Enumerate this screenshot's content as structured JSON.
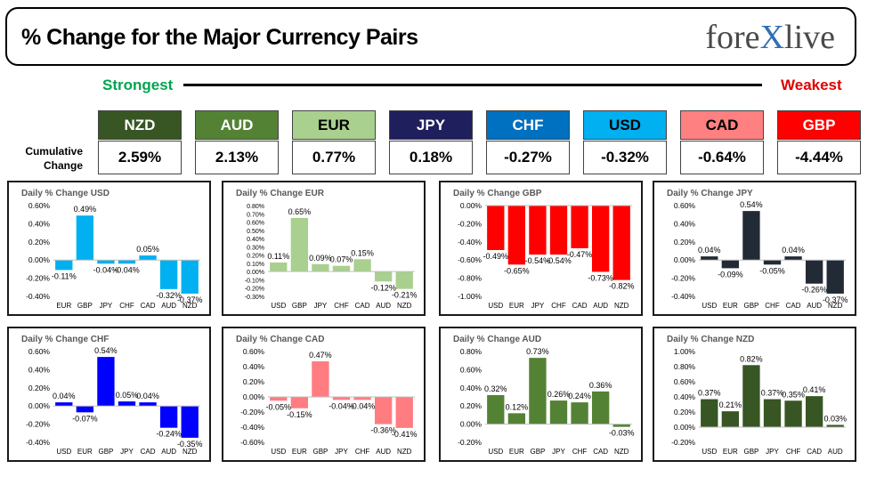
{
  "header": {
    "title": "% Change for the Major Currency Pairs",
    "logo_left": "fore",
    "logo_x": "X",
    "logo_right": "live"
  },
  "ranking": {
    "strongest_label": "Strongest",
    "weakest_label": "Weakest",
    "cumulative_label_line1": "Cumulative",
    "cumulative_label_line2": "Change",
    "currencies": [
      {
        "code": "NZD",
        "value": "2.59%",
        "bg": "#375623",
        "fg": "#ffffff"
      },
      {
        "code": "AUD",
        "value": "2.13%",
        "bg": "#548235",
        "fg": "#ffffff"
      },
      {
        "code": "EUR",
        "value": "0.77%",
        "bg": "#a9d08e",
        "fg": "#000000"
      },
      {
        "code": "JPY",
        "value": "0.18%",
        "bg": "#1f1f5e",
        "fg": "#ffffff"
      },
      {
        "code": "CHF",
        "value": "-0.27%",
        "bg": "#0070c0",
        "fg": "#ffffff"
      },
      {
        "code": "USD",
        "value": "-0.32%",
        "bg": "#00b0f0",
        "fg": "#000000"
      },
      {
        "code": "CAD",
        "value": "-0.64%",
        "bg": "#ff8080",
        "fg": "#000000"
      },
      {
        "code": "GBP",
        "value": "-4.44%",
        "bg": "#ff0000",
        "fg": "#ffffff"
      }
    ]
  },
  "chart_data": [
    {
      "type": "bar",
      "title": "Daily % Change USD",
      "color": "#00b0f0",
      "categories": [
        "EUR",
        "GBP",
        "JPY",
        "CHF",
        "CAD",
        "AUD",
        "NZD"
      ],
      "values": [
        -0.11,
        0.49,
        -0.04,
        -0.04,
        0.05,
        -0.32,
        -0.37
      ],
      "labels": [
        "-0.11%",
        "0.49%",
        "-0.04%",
        "-0.04%",
        "0.05%",
        "-0.32%",
        "-0.37%"
      ],
      "ylim": [
        -0.4,
        0.6
      ],
      "ticks": [
        0.6,
        0.4,
        0.2,
        0.0,
        -0.2,
        -0.4
      ],
      "tick_labels": [
        "0.60%",
        "0.40%",
        "0.20%",
        "0.00%",
        "-0.20%",
        "-0.40%"
      ]
    },
    {
      "type": "bar",
      "title": "Daily % Change EUR",
      "color": "#a9d08e",
      "categories": [
        "USD",
        "GBP",
        "JPY",
        "CHF",
        "CAD",
        "AUD",
        "NZD"
      ],
      "values": [
        0.11,
        0.65,
        0.09,
        0.07,
        0.15,
        -0.12,
        -0.21
      ],
      "labels": [
        "0.11%",
        "0.65%",
        "0.09%",
        "0.07%",
        "0.15%",
        "-0.12%",
        "-0.21%"
      ],
      "ylim": [
        -0.3,
        0.8
      ],
      "ticks": [
        0.8,
        0.7,
        0.6,
        0.5,
        0.4,
        0.3,
        0.2,
        0.1,
        0.0,
        -0.1,
        -0.2,
        -0.3
      ],
      "tick_labels": [
        "0.80%",
        "0.70%",
        "0.60%",
        "0.50%",
        "0.40%",
        "0.30%",
        "0.20%",
        "0.10%",
        "0.00%",
        "-0.10%",
        "-0.20%",
        "-0.30%"
      ]
    },
    {
      "type": "bar",
      "title": "Daily % Change GBP",
      "color": "#ff0000",
      "categories": [
        "USD",
        "EUR",
        "JPY",
        "CHF",
        "CAD",
        "AUD",
        "NZD"
      ],
      "values": [
        -0.49,
        -0.65,
        -0.54,
        -0.54,
        -0.47,
        -0.73,
        -0.82
      ],
      "labels": [
        "-0.49%",
        "-0.65%",
        "-0.54%",
        "-0.54%",
        "-0.47%",
        "-0.73%",
        "-0.82%"
      ],
      "ylim": [
        -1.0,
        0.0
      ],
      "ticks": [
        0.0,
        -0.2,
        -0.4,
        -0.6,
        -0.8,
        -1.0
      ],
      "tick_labels": [
        "0.00%",
        "-0.20%",
        "-0.40%",
        "-0.60%",
        "-0.80%",
        "-1.00%"
      ]
    },
    {
      "type": "bar",
      "title": "Daily % Change JPY",
      "color": "#222a35",
      "categories": [
        "USD",
        "EUR",
        "GBP",
        "CHF",
        "CAD",
        "AUD",
        "NZD"
      ],
      "values": [
        0.04,
        -0.09,
        0.54,
        -0.05,
        0.04,
        -0.26,
        -0.37
      ],
      "labels": [
        "0.04%",
        "-0.09%",
        "0.54%",
        "-0.05%",
        "0.04%",
        "-0.26%",
        "-0.37%"
      ],
      "ylim": [
        -0.4,
        0.6
      ],
      "ticks": [
        0.6,
        0.4,
        0.2,
        0.0,
        -0.2,
        -0.4
      ],
      "tick_labels": [
        "0.60%",
        "0.40%",
        "0.20%",
        "0.00%",
        "-0.20%",
        "-0.40%"
      ]
    },
    {
      "type": "bar",
      "title": "Daily % Change CHF",
      "color": "#0000ff",
      "categories": [
        "USD",
        "EUR",
        "GBP",
        "JPY",
        "CAD",
        "AUD",
        "NZD"
      ],
      "values": [
        0.04,
        -0.07,
        0.54,
        0.05,
        0.04,
        -0.24,
        -0.35
      ],
      "labels": [
        "0.04%",
        "-0.07%",
        "0.54%",
        "0.05%",
        "0.04%",
        "-0.24%",
        "-0.35%"
      ],
      "ylim": [
        -0.4,
        0.6
      ],
      "ticks": [
        0.6,
        0.4,
        0.2,
        0.0,
        -0.2,
        -0.4
      ],
      "tick_labels": [
        "0.60%",
        "0.40%",
        "0.20%",
        "0.00%",
        "-0.20%",
        "-0.40%"
      ]
    },
    {
      "type": "bar",
      "title": "Daily % Change CAD",
      "color": "#ff7c80",
      "categories": [
        "USD",
        "EUR",
        "GBP",
        "JPY",
        "CHF",
        "AUD",
        "NZD"
      ],
      "values": [
        -0.05,
        -0.15,
        0.47,
        -0.04,
        -0.04,
        -0.36,
        -0.41
      ],
      "labels": [
        "-0.05%",
        "-0.15%",
        "0.47%",
        "-0.04%",
        "-0.04%",
        "-0.36%",
        "-0.41%"
      ],
      "ylim": [
        -0.6,
        0.6
      ],
      "ticks": [
        0.6,
        0.4,
        0.2,
        0.0,
        -0.2,
        -0.4,
        -0.6
      ],
      "tick_labels": [
        "0.60%",
        "0.40%",
        "0.20%",
        "0.00%",
        "-0.20%",
        "-0.40%",
        "-0.60%"
      ]
    },
    {
      "type": "bar",
      "title": "Daily % Change AUD",
      "color": "#548235",
      "categories": [
        "USD",
        "EUR",
        "GBP",
        "JPY",
        "CHF",
        "CAD",
        "NZD"
      ],
      "values": [
        0.32,
        0.12,
        0.73,
        0.26,
        0.24,
        0.36,
        -0.03
      ],
      "labels": [
        "0.32%",
        "0.12%",
        "0.73%",
        "0.26%",
        "0.24%",
        "0.36%",
        "-0.03%"
      ],
      "ylim": [
        -0.2,
        0.8
      ],
      "ticks": [
        0.8,
        0.6,
        0.4,
        0.2,
        0.0,
        -0.2
      ],
      "tick_labels": [
        "0.80%",
        "0.60%",
        "0.40%",
        "0.20%",
        "0.00%",
        "-0.20%"
      ]
    },
    {
      "type": "bar",
      "title": "Daily % Change NZD",
      "color": "#375623",
      "categories": [
        "USD",
        "EUR",
        "GBP",
        "JPY",
        "CHF",
        "CAD",
        "AUD"
      ],
      "values": [
        0.37,
        0.21,
        0.82,
        0.37,
        0.35,
        0.41,
        0.03
      ],
      "labels": [
        "0.37%",
        "0.21%",
        "0.82%",
        "0.37%",
        "0.35%",
        "0.41%",
        "0.03%"
      ],
      "ylim": [
        -0.2,
        1.0
      ],
      "ticks": [
        1.0,
        0.8,
        0.6,
        0.4,
        0.2,
        0.0,
        -0.2
      ],
      "tick_labels": [
        "1.00%",
        "0.80%",
        "0.60%",
        "0.40%",
        "0.20%",
        "0.00%",
        "-0.20%"
      ]
    }
  ]
}
